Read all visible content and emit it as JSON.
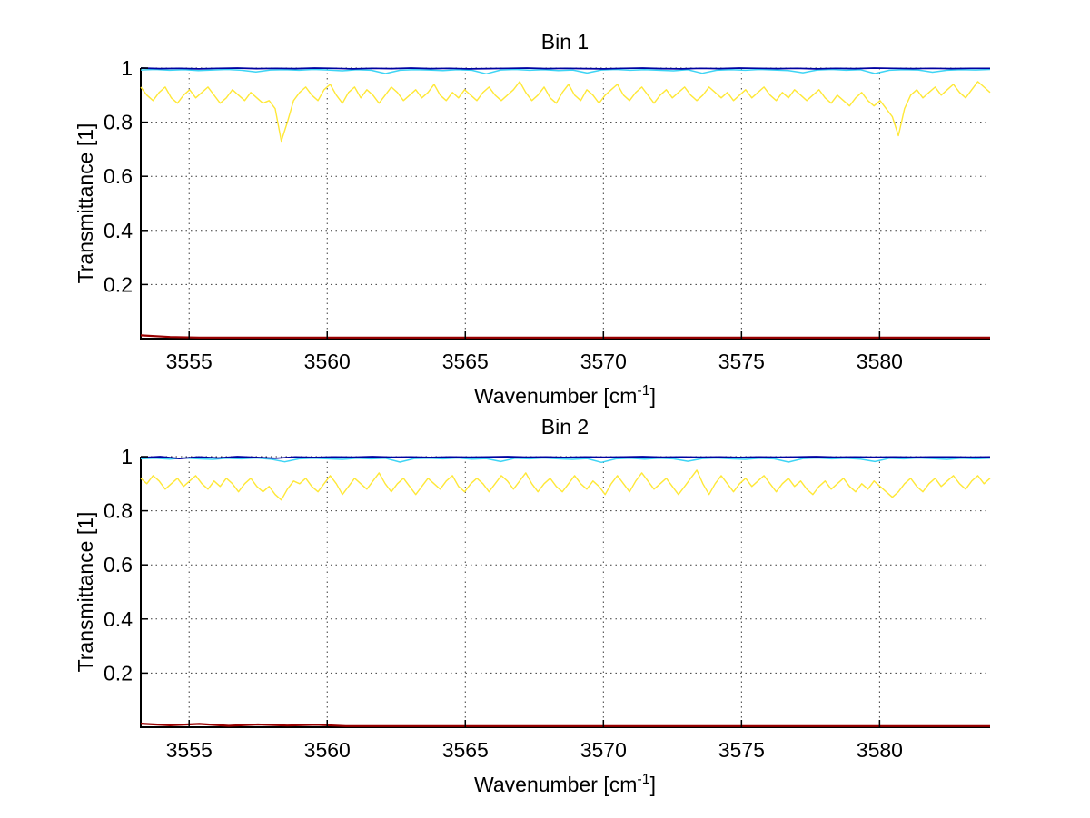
{
  "figure": {
    "background": "#FFFFFF",
    "style": {
      "axis_color": "#000000",
      "grid_color": "#3a3a3a",
      "text_color": "#000000"
    }
  },
  "chart_data": [
    {
      "type": "line",
      "title": "Bin 1",
      "xlabel": {
        "pre": "Wavenumber [cm",
        "sup": "-1",
        "post": "]"
      },
      "ylabel": "Transmittance [1]",
      "xlim": [
        3553.25,
        3584.0
      ],
      "ylim": [
        0,
        1
      ],
      "xticks": [
        3555,
        3560,
        3565,
        3570,
        3575,
        3580
      ],
      "yticks": [
        0.2,
        0.4,
        0.6,
        0.8,
        1
      ],
      "ytick_labels": [
        "0.2",
        "0.4",
        "0.6",
        "0.8",
        "1"
      ],
      "grid": true,
      "legend": null,
      "series": [
        {
          "name": "dark-blue-line",
          "color": "#0000A0",
          "width": 1.7,
          "values": [
            1.0,
            0.998,
            0.999,
            0.997,
            0.999,
            1.0,
            0.998,
            0.999,
            0.998,
            1.0,
            0.999,
            0.997,
            0.999,
            0.998,
            1.0,
            0.998,
            0.999,
            0.997,
            0.998,
            0.999,
            1.0,
            0.998,
            0.999,
            0.998,
            0.997,
            0.999,
            1.0,
            0.998,
            0.997,
            0.999,
            0.998,
            1.0,
            0.999,
            0.998,
            0.999,
            0.997,
            0.999,
            0.998,
            1.0,
            0.999,
            0.998,
            0.999,
            0.998,
            0.999,
            0.999
          ]
        },
        {
          "name": "cyan-line",
          "color": "#3FD4F4",
          "width": 1.5,
          "values": [
            0.993,
            0.995,
            0.992,
            0.994,
            0.991,
            0.993,
            0.995,
            0.992,
            0.986,
            0.993,
            0.994,
            0.992,
            0.995,
            0.993,
            0.99,
            0.994,
            0.992,
            0.98,
            0.992,
            0.994,
            0.993,
            0.991,
            0.994,
            0.992,
            0.979,
            0.993,
            0.995,
            0.992,
            0.994,
            0.991,
            0.993,
            0.982,
            0.993,
            0.995,
            0.992,
            0.994,
            0.992,
            0.99,
            0.994,
            0.981,
            0.992,
            0.994,
            0.992,
            0.995,
            0.993,
            0.991,
            0.983,
            0.993,
            0.995,
            0.992,
            0.994,
            0.98,
            0.992,
            0.994,
            0.993,
            0.985,
            0.992,
            0.994,
            0.993,
            0.995
          ]
        },
        {
          "name": "yellow-line",
          "color": "#FFE838",
          "width": 1.4,
          "values": [
            0.93,
            0.9,
            0.88,
            0.91,
            0.93,
            0.89,
            0.87,
            0.9,
            0.92,
            0.89,
            0.91,
            0.93,
            0.9,
            0.87,
            0.89,
            0.92,
            0.9,
            0.88,
            0.91,
            0.89,
            0.87,
            0.88,
            0.85,
            0.73,
            0.8,
            0.88,
            0.91,
            0.93,
            0.9,
            0.88,
            0.92,
            0.94,
            0.9,
            0.87,
            0.91,
            0.93,
            0.89,
            0.92,
            0.9,
            0.87,
            0.9,
            0.93,
            0.91,
            0.88,
            0.9,
            0.92,
            0.89,
            0.91,
            0.94,
            0.9,
            0.88,
            0.91,
            0.89,
            0.92,
            0.9,
            0.88,
            0.91,
            0.93,
            0.9,
            0.88,
            0.9,
            0.92,
            0.95,
            0.91,
            0.88,
            0.9,
            0.93,
            0.89,
            0.87,
            0.91,
            0.94,
            0.9,
            0.88,
            0.92,
            0.9,
            0.87,
            0.9,
            0.92,
            0.94,
            0.9,
            0.88,
            0.91,
            0.93,
            0.9,
            0.87,
            0.9,
            0.92,
            0.89,
            0.91,
            0.93,
            0.9,
            0.88,
            0.9,
            0.93,
            0.91,
            0.89,
            0.91,
            0.88,
            0.9,
            0.92,
            0.89,
            0.91,
            0.93,
            0.9,
            0.88,
            0.91,
            0.89,
            0.92,
            0.9,
            0.88,
            0.9,
            0.92,
            0.89,
            0.87,
            0.9,
            0.88,
            0.86,
            0.89,
            0.91,
            0.88,
            0.86,
            0.88,
            0.85,
            0.82,
            0.75,
            0.85,
            0.9,
            0.92,
            0.89,
            0.91,
            0.93,
            0.9,
            0.92,
            0.94,
            0.91,
            0.89,
            0.92,
            0.95,
            0.93,
            0.91
          ]
        },
        {
          "name": "dark-red-line",
          "color": "#990000",
          "width": 2.2,
          "values": [
            0.012,
            0.006,
            0.004,
            0.004,
            0.004,
            0.004,
            0.004,
            0.004,
            0.004,
            0.004,
            0.004,
            0.004,
            0.004,
            0.004,
            0.004,
            0.004,
            0.004,
            0.004,
            0.004,
            0.004,
            0.004,
            0.004,
            0.004,
            0.004,
            0.004,
            0.004,
            0.004,
            0.004,
            0.004,
            0.004
          ]
        }
      ]
    },
    {
      "type": "line",
      "title": "Bin 2",
      "xlabel": {
        "pre": "Wavenumber [cm",
        "sup": "-1",
        "post": "]"
      },
      "ylabel": "Transmittance [1]",
      "xlim": [
        3553.25,
        3584.0
      ],
      "ylim": [
        0,
        1
      ],
      "xticks": [
        3555,
        3560,
        3565,
        3570,
        3575,
        3580
      ],
      "yticks": [
        0.2,
        0.4,
        0.6,
        0.8,
        1
      ],
      "ytick_labels": [
        "0.2",
        "0.4",
        "0.6",
        "0.8",
        "1"
      ],
      "grid": true,
      "legend": null,
      "series": [
        {
          "name": "dark-blue-line",
          "color": "#0000A0",
          "width": 1.7,
          "values": [
            0.996,
            1.0,
            0.993,
            0.999,
            0.995,
            1.0,
            0.997,
            0.994,
            0.999,
            0.997,
            0.999,
            0.998,
            1.0,
            0.998,
            0.999,
            0.997,
            0.999,
            0.998,
            0.999,
            1.0,
            0.998,
            0.999,
            0.997,
            0.999,
            0.998,
            0.999,
            1.0,
            0.998,
            0.999,
            0.998,
            0.999,
            0.997,
            0.999,
            0.998,
            0.999,
            1.0,
            0.998,
            0.999,
            0.998,
            0.999,
            0.998,
            0.999,
            0.999,
            0.998,
            0.999
          ]
        },
        {
          "name": "cyan-line",
          "color": "#3FD4F4",
          "width": 1.5,
          "values": [
            0.992,
            0.994,
            0.991,
            0.995,
            0.992,
            0.99,
            0.994,
            0.992,
            0.995,
            0.991,
            0.981,
            0.992,
            0.994,
            0.992,
            0.99,
            0.994,
            0.992,
            0.994,
            0.98,
            0.993,
            0.994,
            0.992,
            0.995,
            0.991,
            0.993,
            0.982,
            0.994,
            0.992,
            0.995,
            0.992,
            0.99,
            0.993,
            0.979,
            0.992,
            0.994,
            0.991,
            0.994,
            0.992,
            0.983,
            0.993,
            0.995,
            0.992,
            0.99,
            0.994,
            0.992,
            0.98,
            0.993,
            0.995,
            0.992,
            0.994,
            0.991,
            0.982,
            0.994,
            0.992,
            0.995,
            0.993,
            0.99,
            0.994,
            0.992,
            0.994
          ]
        },
        {
          "name": "yellow-line",
          "color": "#FFE838",
          "width": 1.4,
          "values": [
            0.92,
            0.9,
            0.93,
            0.91,
            0.88,
            0.9,
            0.92,
            0.89,
            0.91,
            0.93,
            0.9,
            0.88,
            0.91,
            0.89,
            0.92,
            0.9,
            0.87,
            0.9,
            0.92,
            0.89,
            0.87,
            0.89,
            0.86,
            0.84,
            0.88,
            0.91,
            0.9,
            0.92,
            0.89,
            0.87,
            0.9,
            0.93,
            0.9,
            0.86,
            0.89,
            0.92,
            0.9,
            0.88,
            0.91,
            0.94,
            0.9,
            0.87,
            0.9,
            0.92,
            0.89,
            0.86,
            0.89,
            0.92,
            0.9,
            0.88,
            0.91,
            0.93,
            0.89,
            0.87,
            0.9,
            0.92,
            0.9,
            0.87,
            0.9,
            0.93,
            0.91,
            0.88,
            0.91,
            0.94,
            0.9,
            0.87,
            0.9,
            0.92,
            0.89,
            0.87,
            0.9,
            0.93,
            0.9,
            0.88,
            0.91,
            0.89,
            0.86,
            0.9,
            0.93,
            0.9,
            0.87,
            0.91,
            0.94,
            0.91,
            0.88,
            0.9,
            0.92,
            0.89,
            0.86,
            0.89,
            0.92,
            0.95,
            0.9,
            0.86,
            0.9,
            0.93,
            0.9,
            0.87,
            0.9,
            0.92,
            0.89,
            0.91,
            0.93,
            0.9,
            0.87,
            0.9,
            0.92,
            0.89,
            0.91,
            0.88,
            0.86,
            0.89,
            0.91,
            0.88,
            0.9,
            0.92,
            0.89,
            0.87,
            0.9,
            0.88,
            0.91,
            0.89,
            0.87,
            0.85,
            0.87,
            0.9,
            0.92,
            0.89,
            0.87,
            0.9,
            0.92,
            0.89,
            0.91,
            0.93,
            0.9,
            0.88,
            0.91,
            0.93,
            0.9,
            0.92
          ]
        },
        {
          "name": "dark-red-line",
          "color": "#990000",
          "width": 2.2,
          "values": [
            0.013,
            0.007,
            0.012,
            0.005,
            0.01,
            0.006,
            0.009,
            0.004,
            0.004,
            0.004,
            0.004,
            0.004,
            0.004,
            0.004,
            0.004,
            0.004,
            0.004,
            0.004,
            0.004,
            0.004,
            0.004,
            0.004,
            0.004,
            0.004,
            0.004,
            0.004,
            0.004,
            0.004,
            0.004,
            0.004
          ]
        }
      ]
    }
  ]
}
